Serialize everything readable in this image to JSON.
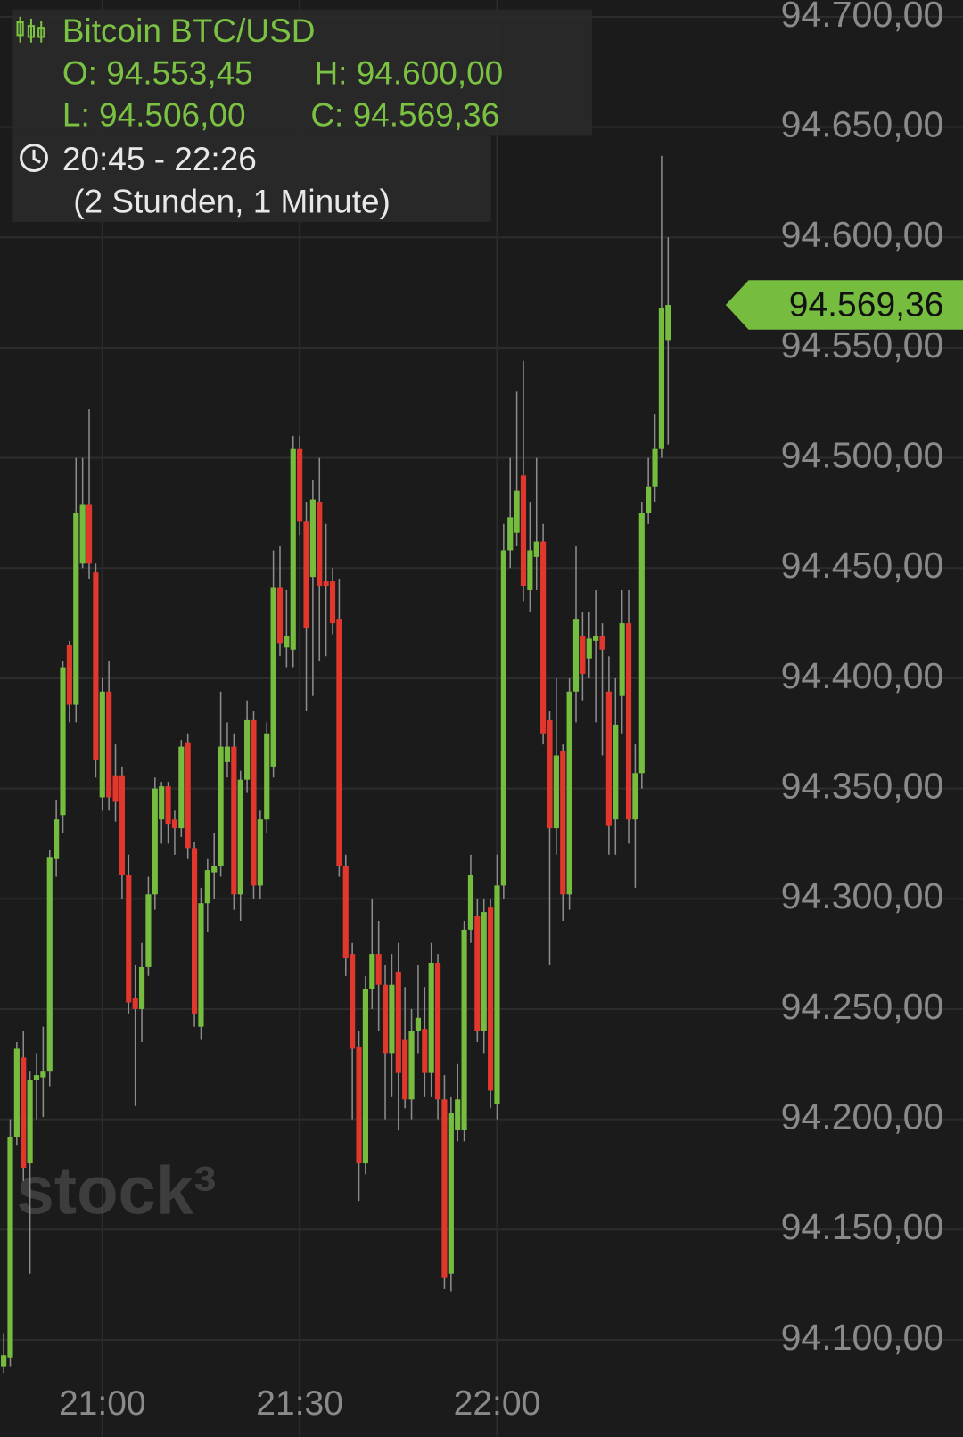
{
  "chart_data": {
    "type": "candlestick",
    "header": {
      "title": "Bitcoin BTC/USD",
      "open": "O: 94.553,45",
      "high": "H: 94.600,00",
      "low": "L: 94.506,00",
      "close": "C: 94.569,36",
      "time_range": "20:45 - 22:26",
      "duration": "(2 Stunden, 1 Minute)"
    },
    "watermark": "stock³",
    "x": [
      "20:45",
      "20:46",
      "20:47",
      "20:48",
      "20:49",
      "20:50",
      "20:51",
      "20:52",
      "20:53",
      "20:54",
      "20:55",
      "20:56",
      "20:57",
      "20:58",
      "20:59",
      "21:00",
      "21:01",
      "21:02",
      "21:03",
      "21:04",
      "21:05",
      "21:06",
      "21:07",
      "21:08",
      "21:09",
      "21:10",
      "21:11",
      "21:12",
      "21:13",
      "21:14",
      "21:15",
      "21:16",
      "21:17",
      "21:18",
      "21:19",
      "21:20",
      "21:21",
      "21:22",
      "21:23",
      "21:24",
      "21:25",
      "21:26",
      "21:27",
      "21:28",
      "21:29",
      "21:30",
      "21:31",
      "21:32",
      "21:33",
      "21:34",
      "21:35",
      "21:36",
      "21:37",
      "21:38",
      "21:39",
      "21:40",
      "21:41",
      "21:42",
      "21:43",
      "21:44",
      "21:45",
      "21:46",
      "21:47",
      "21:48",
      "21:49",
      "21:50",
      "21:51",
      "21:52",
      "21:53",
      "21:54",
      "21:55",
      "21:56",
      "21:57",
      "21:58",
      "21:59",
      "22:00",
      "22:01",
      "22:02",
      "22:03",
      "22:04",
      "22:05",
      "22:06",
      "22:07",
      "22:08",
      "22:09",
      "22:10",
      "22:11",
      "22:12",
      "22:13",
      "22:14",
      "22:15",
      "22:16",
      "22:17",
      "22:18",
      "22:19",
      "22:20",
      "22:21",
      "22:22",
      "22:23",
      "22:24",
      "22:25",
      "22:26"
    ],
    "open": [
      94088,
      94092,
      94192,
      94228,
      94180,
      94218,
      94219,
      94222,
      94318,
      94338,
      94415,
      94388,
      94452,
      94479,
      94448,
      94346,
      94394,
      94356,
      94356,
      94311,
      94255,
      94250,
      94269,
      94302,
      94336,
      94351,
      94336,
      94332,
      94371,
      94323,
      94242,
      94298,
      94312,
      94315,
      94362,
      94369,
      94302,
      94354,
      94381,
      94306,
      94336,
      94360,
      94441,
      94414,
      94413,
      94504,
      94471,
      94446,
      94480,
      94444,
      94444,
      94427,
      94315,
      94275,
      94233,
      94180,
      94259,
      94275,
      94261,
      94230,
      94267,
      94236,
      94209,
      94240,
      94241,
      94221,
      94271,
      94209,
      94130,
      94195,
      94195,
      94286,
      94292,
      94240,
      94296,
      94207,
      94306,
      94458,
      94466,
      94492,
      94440,
      94455,
      94462,
      94381,
      94332,
      94367,
      94302,
      94394,
      94419,
      94409,
      94417,
      94419,
      94394,
      94336,
      94392,
      94425,
      94336,
      94357,
      94475,
      94487,
      94504,
      94553.45
    ],
    "high": [
      94103,
      94200,
      94235,
      94240,
      94222,
      94230,
      94242,
      94322,
      94345,
      94408,
      94417,
      94500,
      94500,
      94522,
      94452,
      94400,
      94408,
      94370,
      94360,
      94320,
      94270,
      94280,
      94310,
      94355,
      94353,
      94353,
      94340,
      94372,
      94375,
      94326,
      94305,
      94318,
      94330,
      94394,
      94380,
      94375,
      94358,
      94390,
      94385,
      94340,
      94380,
      94458,
      94460,
      94440,
      94510,
      94510,
      94480,
      94490,
      94500,
      94470,
      94450,
      94445,
      94320,
      94280,
      94240,
      94265,
      94300,
      94290,
      94270,
      94275,
      94280,
      94260,
      94250,
      94270,
      94260,
      94280,
      94275,
      94220,
      94210,
      94225,
      94290,
      94320,
      94300,
      94300,
      94300,
      94320,
      94470,
      94500,
      94530,
      94544,
      94480,
      94500,
      94470,
      94385,
      94400,
      94370,
      94400,
      94460,
      94430,
      94430,
      94440,
      94425,
      94410,
      94400,
      94440,
      94440,
      94370,
      94480,
      94500,
      94520,
      94637,
      94600
    ],
    "low": [
      94085,
      94088,
      94188,
      94172,
      94130,
      94200,
      94201,
      94215,
      94310,
      94330,
      94380,
      94380,
      94450,
      94445,
      94355,
      94340,
      94340,
      94335,
      94300,
      94248,
      94206,
      94235,
      94265,
      94295,
      94325,
      94325,
      94320,
      94328,
      94318,
      94242,
      94236,
      94285,
      94300,
      94310,
      94355,
      94295,
      94290,
      94348,
      94300,
      94300,
      94330,
      94355,
      94410,
      94405,
      94405,
      94465,
      94385,
      94392,
      94408,
      94410,
      94420,
      94310,
      94265,
      94200,
      94163,
      94175,
      94250,
      94240,
      94200,
      94210,
      94195,
      94205,
      94200,
      94230,
      94210,
      94210,
      94200,
      94123,
      94122,
      94190,
      94190,
      94280,
      94235,
      94230,
      94205,
      94200,
      94300,
      94450,
      94460,
      94435,
      94430,
      94440,
      94370,
      94270,
      94320,
      94290,
      94295,
      94380,
      94390,
      94400,
      94380,
      94365,
      94320,
      94320,
      94375,
      94325,
      94305,
      94350,
      94470,
      94480,
      94500,
      94506
    ],
    "close": [
      94093,
      94192,
      94232,
      94178,
      94218,
      94220,
      94222,
      94319,
      94336,
      94405,
      94388,
      94475,
      94479,
      94452,
      94363,
      94394,
      94346,
      94344,
      94311,
      94253,
      94250,
      94269,
      94302,
      94350,
      94351,
      94334,
      94332,
      94369,
      94323,
      94248,
      94298,
      94313,
      94315,
      94369,
      94369,
      94302,
      94354,
      94381,
      94306,
      94336,
      94375,
      94441,
      94416,
      94419,
      94504,
      94471,
      94423,
      94481,
      94442,
      94442,
      94425,
      94315,
      94273,
      94232,
      94180,
      94259,
      94275,
      94261,
      94230,
      94261,
      94221,
      94209,
      94240,
      94246,
      94221,
      94271,
      94209,
      94128,
      94203,
      94209,
      94286,
      94311,
      94240,
      94294,
      94213,
      94306,
      94458,
      94473,
      94485,
      94442,
      94458,
      94462,
      94375,
      94332,
      94365,
      94302,
      94394,
      94427,
      94402,
      94418,
      94419,
      94413,
      94333,
      94379,
      94425,
      94336,
      94357,
      94475,
      94487,
      94504,
      94568,
      94569.36
    ],
    "up_color": "#76bd3f",
    "down_color": "#e2372d",
    "last_price": {
      "value": 94569.36,
      "label": "94.569,36"
    },
    "ylim": [
      94084.3,
      94707.5
    ],
    "yticks": [
      {
        "value": 94100,
        "label": "94.100,00"
      },
      {
        "value": 94150,
        "label": "94.150,00"
      },
      {
        "value": 94200,
        "label": "94.200,00"
      },
      {
        "value": 94250,
        "label": "94.250,00"
      },
      {
        "value": 94300,
        "label": "94.300,00"
      },
      {
        "value": 94350,
        "label": "94.350,00"
      },
      {
        "value": 94400,
        "label": "94.400,00"
      },
      {
        "value": 94450,
        "label": "94.450,00"
      },
      {
        "value": 94500,
        "label": "94.500,00"
      },
      {
        "value": 94550,
        "label": "94.550,00"
      },
      {
        "value": 94600,
        "label": "94.600,00"
      },
      {
        "value": 94650,
        "label": "94.650,00"
      },
      {
        "value": 94700,
        "label": "94.700,00"
      }
    ],
    "xticks": [
      "21:00",
      "21:30",
      "22:00"
    ],
    "grid": true
  }
}
